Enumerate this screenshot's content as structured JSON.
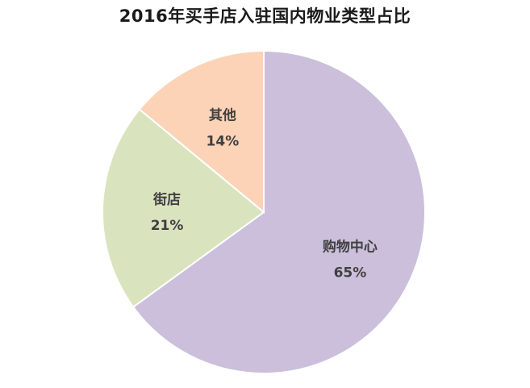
{
  "chart_data": {
    "type": "pie",
    "title": "2016年买手店入驻国内物业类型占比",
    "slices": [
      {
        "label": "购物中心",
        "value": 65,
        "value_label": "65%",
        "color": "#cbbfdb"
      },
      {
        "label": "街店",
        "value": 21,
        "value_label": "21%",
        "color": "#d9e4bf"
      },
      {
        "label": "其他",
        "value": 14,
        "value_label": "14%",
        "color": "#fcd3b6"
      }
    ],
    "start": "12 o'clock",
    "direction": "clockwise",
    "slice_border_color": "#ffffff",
    "legend": "none"
  }
}
